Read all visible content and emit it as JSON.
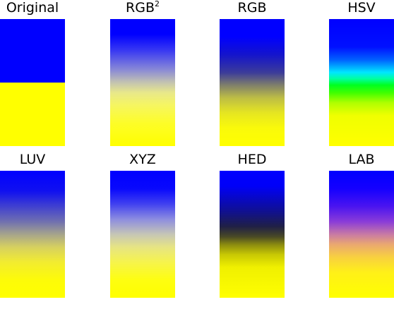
{
  "panels": [
    {
      "title": "Original",
      "colorspace": "original",
      "top_color": "#0000ff",
      "bottom_color": "#ffff00"
    },
    {
      "title": "RGB",
      "superscript": "2",
      "colorspace": "rgb2",
      "top_color": "#0000ff",
      "bottom_color": "#ffff00"
    },
    {
      "title": "RGB",
      "colorspace": "rgb",
      "top_color": "#0000ff",
      "bottom_color": "#ffff00"
    },
    {
      "title": "HSV",
      "colorspace": "hsv",
      "top_color": "#0000ff",
      "bottom_color": "#ffff00"
    },
    {
      "title": "LUV",
      "colorspace": "luv",
      "top_color": "#0000ff",
      "bottom_color": "#ffff00"
    },
    {
      "title": "XYZ",
      "colorspace": "xyz",
      "top_color": "#0000ff",
      "bottom_color": "#ffff00"
    },
    {
      "title": "HED",
      "colorspace": "hed",
      "top_color": "#0000ff",
      "bottom_color": "#ffff00"
    },
    {
      "title": "LAB",
      "colorspace": "lab",
      "top_color": "#0000ff",
      "bottom_color": "#ffff00"
    }
  ]
}
